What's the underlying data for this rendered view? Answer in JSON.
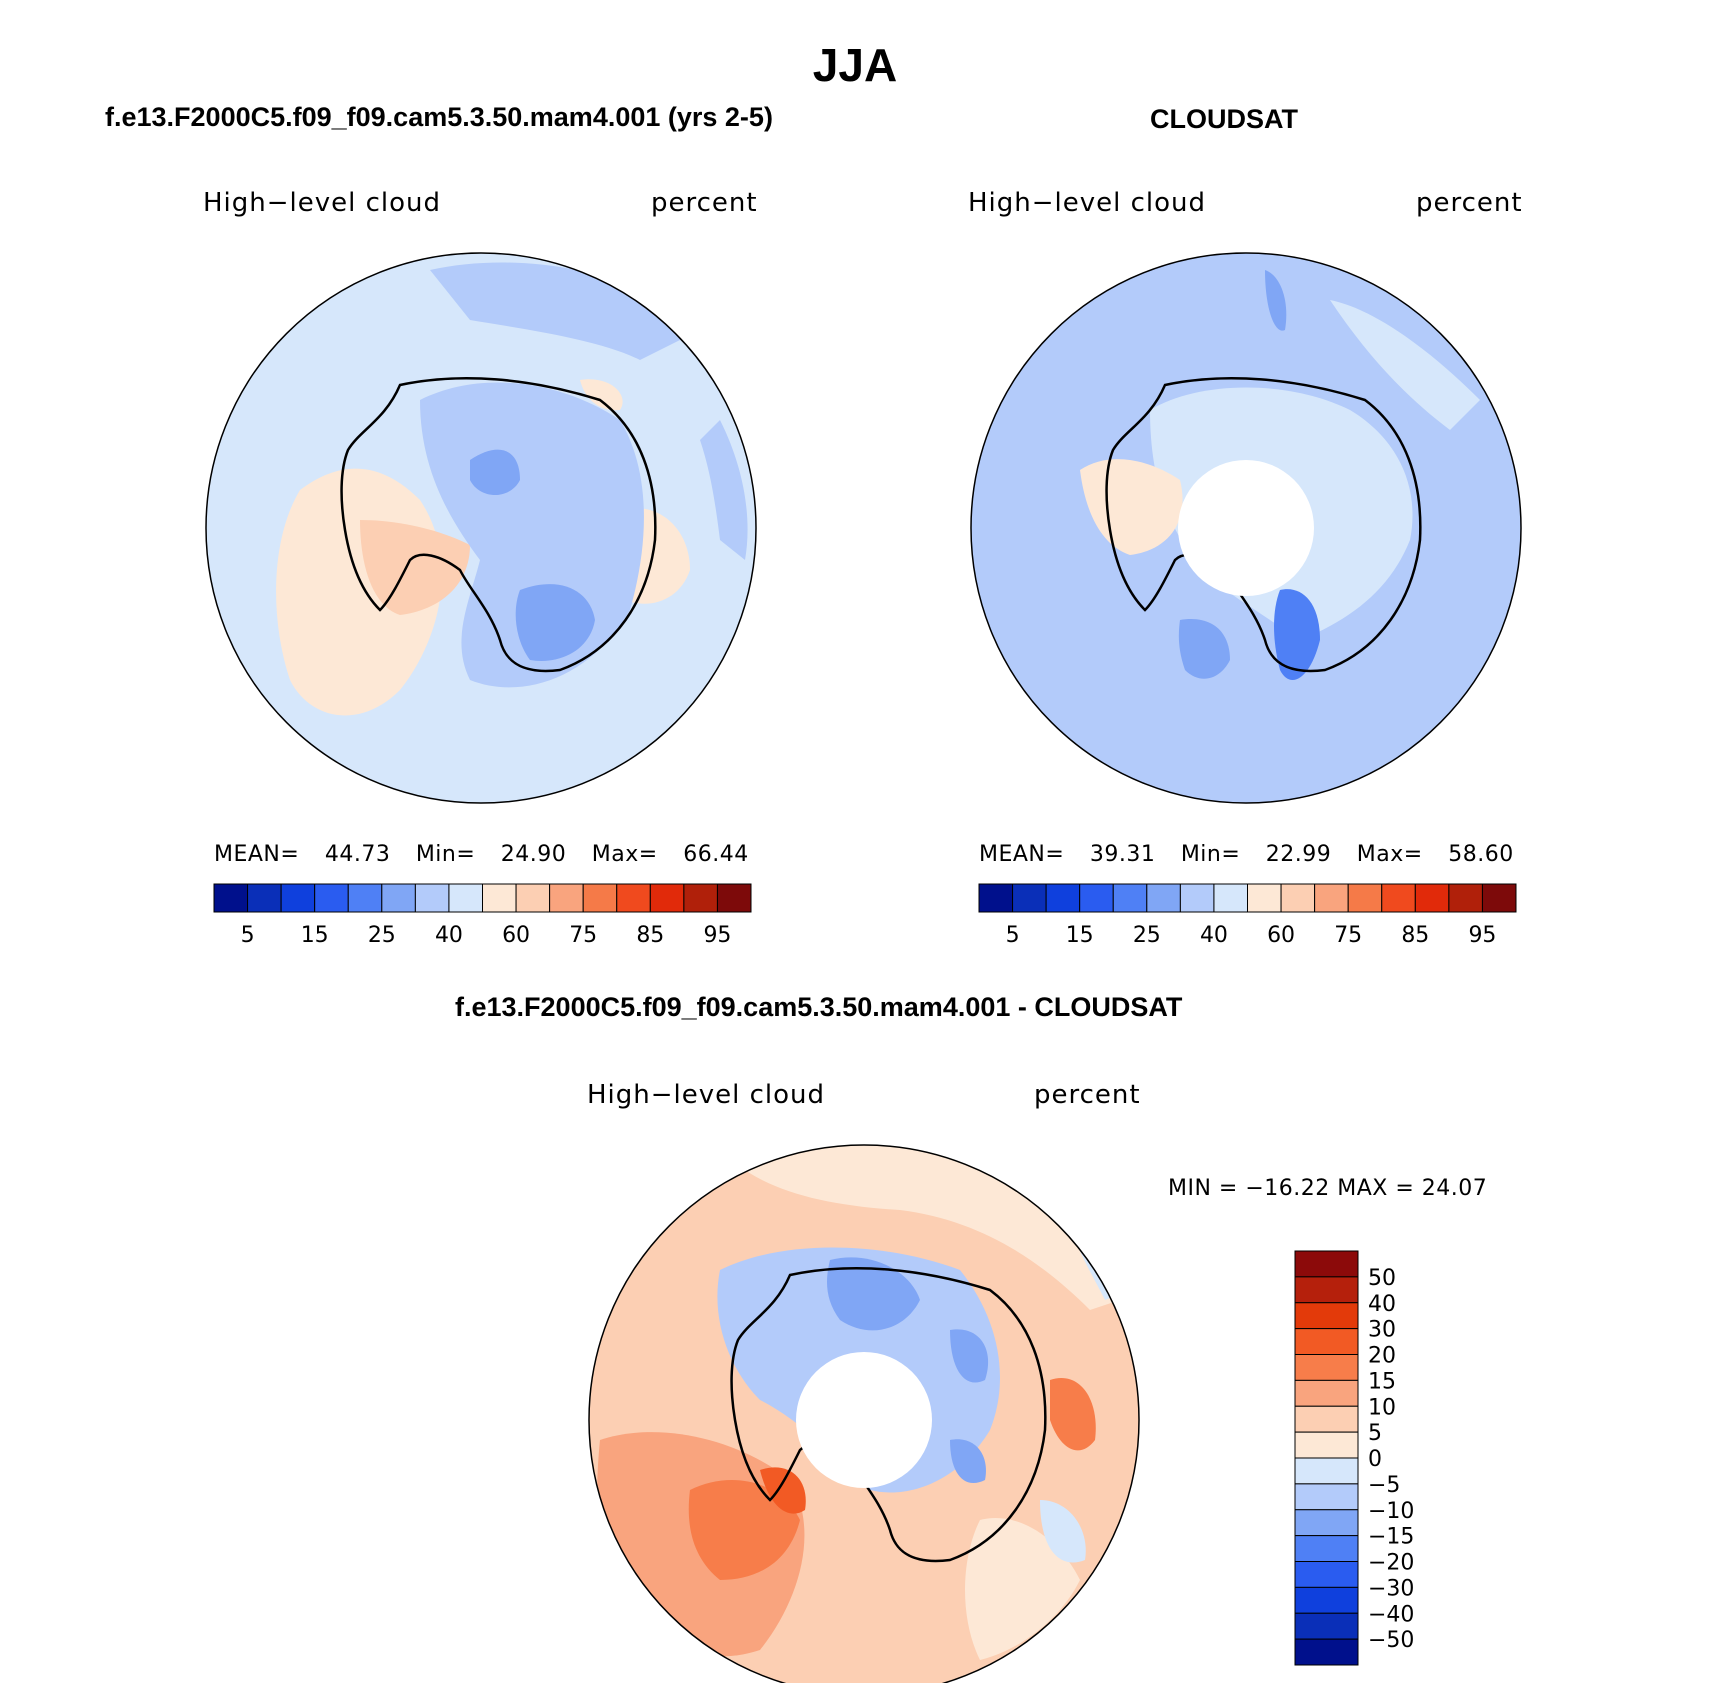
{
  "title": "JJA",
  "panels": [
    {
      "id": "model",
      "header": "f.e13.F2000C5.f09_f09.cam5.3.50.mam4.001 (yrs 2-5)",
      "variable": "High−level cloud",
      "units": "percent",
      "stats": {
        "mean_label": "MEAN=",
        "mean": "44.73",
        "min_label": "Min=",
        "min": "24.90",
        "max_label": "Max=",
        "max": "66.44"
      },
      "colorbar_ticks": [
        "5",
        "15",
        "25",
        "40",
        "60",
        "75",
        "85",
        "95"
      ]
    },
    {
      "id": "obs",
      "header": "CLOUDSAT",
      "variable": "High−level cloud",
      "units": "percent",
      "stats": {
        "mean_label": "MEAN=",
        "mean": "39.31",
        "min_label": "Min=",
        "min": "22.99",
        "max_label": "Max=",
        "max": "58.60"
      },
      "colorbar_ticks": [
        "5",
        "15",
        "25",
        "40",
        "60",
        "75",
        "85",
        "95"
      ]
    },
    {
      "id": "diff",
      "header": "f.e13.F2000C5.f09_f09.cam5.3.50.mam4.001 - CLOUDSAT",
      "variable": "High−level cloud",
      "units": "percent",
      "stats_text": "MIN = −16.22 MAX =   24.07",
      "colorbar_ticks": [
        "50",
        "40",
        "30",
        "20",
        "15",
        "10",
        "5",
        "0",
        "−5",
        "−10",
        "−15",
        "−20",
        "−30",
        "−40",
        "−50"
      ]
    }
  ],
  "abs_palette": [
    "#00108c",
    "#0a2fb8",
    "#0f40dd",
    "#2a5cf0",
    "#4f80f5",
    "#80a6f5",
    "#b3cbfa",
    "#d6e7fb",
    "#fde8d6",
    "#fccfb3",
    "#f9a47e",
    "#f57a48",
    "#f04a1e",
    "#e12a0a",
    "#b0200a",
    "#7d0a0a"
  ],
  "diff_palette": [
    "#8c0a0a",
    "#b5200c",
    "#e33a0a",
    "#f25a24",
    "#f77d4a",
    "#f9a47e",
    "#fccfb3",
    "#fde8d6",
    "#d6e7fb",
    "#b3cbfa",
    "#80a6f5",
    "#4f80f5",
    "#2a5cf0",
    "#0f40dd",
    "#0a2fb8",
    "#00108c"
  ]
}
